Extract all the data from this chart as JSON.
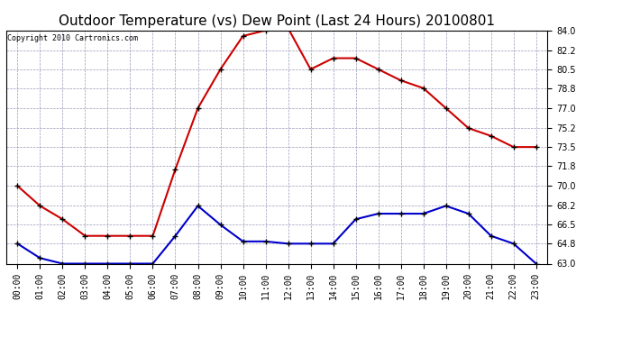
{
  "title": "Outdoor Temperature (vs) Dew Point (Last 24 Hours) 20100801",
  "copyright_text": "Copyright 2010 Cartronics.com",
  "hours": [
    "00:00",
    "01:00",
    "02:00",
    "03:00",
    "04:00",
    "05:00",
    "06:00",
    "07:00",
    "08:00",
    "09:00",
    "10:00",
    "11:00",
    "12:00",
    "13:00",
    "14:00",
    "15:00",
    "16:00",
    "17:00",
    "18:00",
    "19:00",
    "20:00",
    "21:00",
    "22:00",
    "23:00"
  ],
  "temp": [
    70.0,
    68.2,
    67.0,
    65.5,
    65.5,
    65.5,
    65.5,
    71.5,
    77.0,
    80.5,
    83.5,
    84.0,
    84.2,
    80.5,
    81.5,
    81.5,
    80.5,
    79.5,
    78.8,
    77.0,
    75.2,
    74.5,
    73.5,
    73.5
  ],
  "dew": [
    64.8,
    63.5,
    63.0,
    63.0,
    63.0,
    63.0,
    63.0,
    65.5,
    68.2,
    66.5,
    65.0,
    65.0,
    64.8,
    64.8,
    64.8,
    67.0,
    67.5,
    67.5,
    67.5,
    68.2,
    67.5,
    65.5,
    64.8,
    63.0
  ],
  "temp_color": "#cc0000",
  "dew_color": "#0000cc",
  "bg_color": "#ffffff",
  "plot_bg_color": "#ffffff",
  "grid_color": "#9999bb",
  "ylim_min": 63.0,
  "ylim_max": 84.0,
  "yticks": [
    63.0,
    64.8,
    66.5,
    68.2,
    70.0,
    71.8,
    73.5,
    75.2,
    77.0,
    78.8,
    80.5,
    82.2,
    84.0
  ],
  "title_fontsize": 11,
  "copyright_fontsize": 6,
  "tick_fontsize": 7,
  "marker": "+",
  "linewidth": 1.5,
  "markersize": 5,
  "markeredgewidth": 1.0
}
